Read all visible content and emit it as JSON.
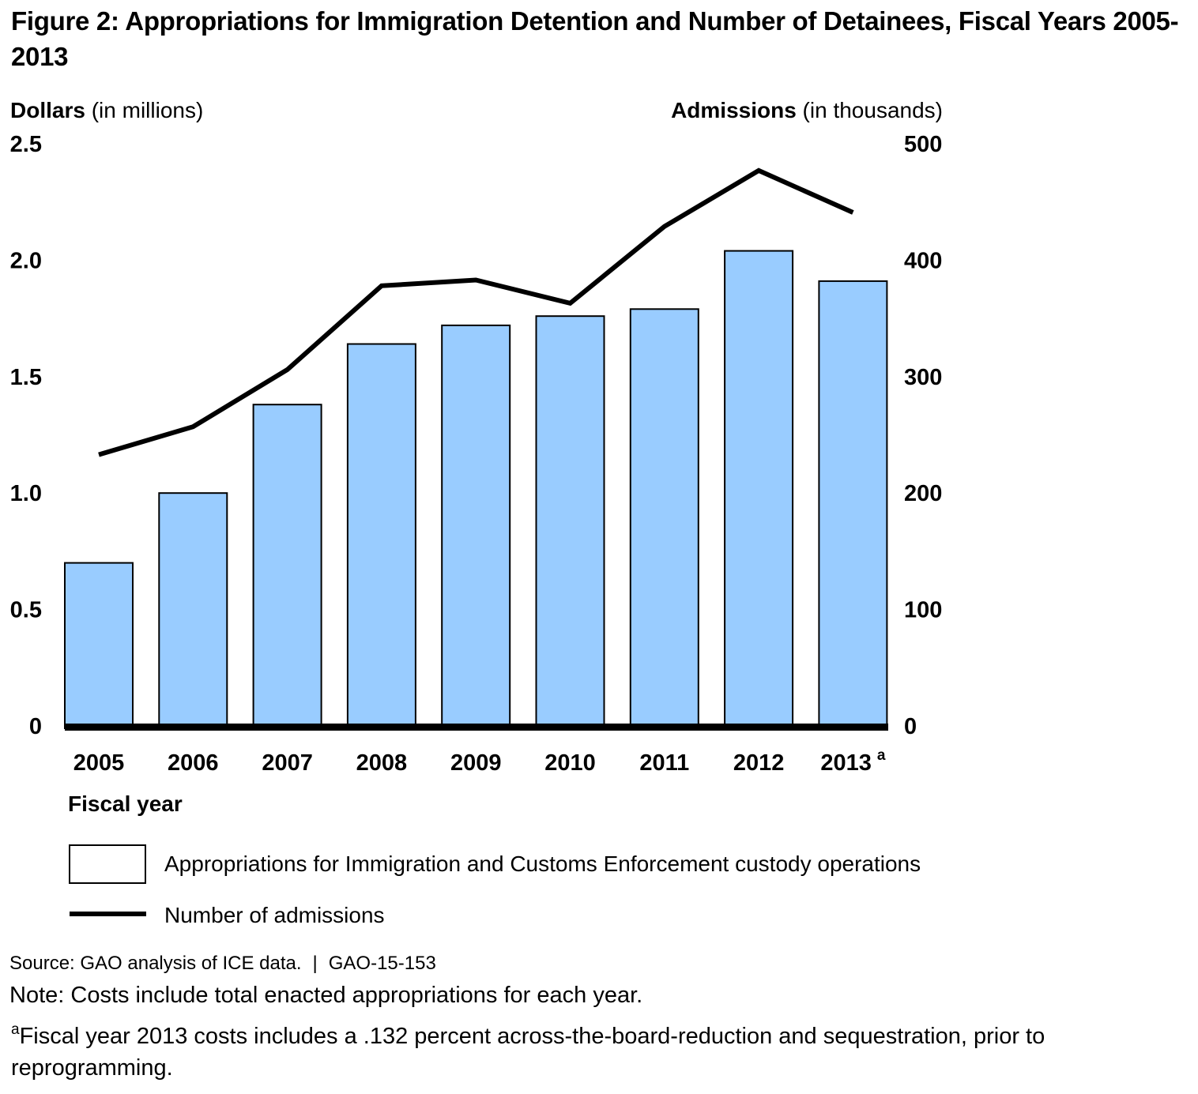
{
  "title": "Figure 2: Appropriations for Immigration Detention and Number of Detainees, Fiscal Years 2005-2013",
  "axes": {
    "left": {
      "label": "Dollars",
      "unit": " (in millions)",
      "ticks": [
        "2.5",
        "2.0",
        "1.5",
        "1.0",
        "0.5",
        "0"
      ]
    },
    "right": {
      "label": "Admissions",
      "unit": " (in thousands)",
      "ticks": [
        "500",
        "400",
        "300",
        "200",
        "100",
        "0"
      ]
    },
    "x": {
      "label": "Fiscal year",
      "last_superscript": "a"
    }
  },
  "chart_data": {
    "type": "combo-bar-line",
    "title": "Appropriations for Immigration Detention and Number of Detainees, Fiscal Years 2005-2013",
    "categories": [
      "2005",
      "2006",
      "2007",
      "2008",
      "2009",
      "2010",
      "2011",
      "2012",
      "2013"
    ],
    "series": [
      {
        "name": "Appropriations for Immigration and Customs Enforcement custody operations",
        "type": "bar",
        "axis": "left",
        "values": [
          0.7,
          1.0,
          1.38,
          1.64,
          1.72,
          1.76,
          1.79,
          2.04,
          1.91
        ],
        "color": "#99CCFF"
      },
      {
        "name": "Number of admissions",
        "type": "line",
        "axis": "right",
        "values": [
          233,
          257,
          306,
          378,
          383,
          363,
          429,
          477,
          441
        ],
        "color": "#000000"
      }
    ],
    "left_axis_range": [
      0,
      2.5
    ],
    "right_axis_range": [
      0,
      500
    ],
    "left_axis_label": "Dollars (in millions)",
    "right_axis_label": "Admissions (in thousands)",
    "x_axis_label": "Fiscal year",
    "grid": false,
    "legend_position": "bottom"
  },
  "legend": {
    "items": [
      {
        "label": "Appropriations for Immigration and Customs Enforcement custody operations",
        "swatch": "bar",
        "color": "#99CCFF"
      },
      {
        "label": "Number of admissions",
        "swatch": "line",
        "color": "#000000"
      }
    ]
  },
  "source": {
    "text": "Source: GAO analysis of ICE data.",
    "separator": "|",
    "report": "GAO-15-153"
  },
  "note": "Note: Costs include total enacted appropriations for each year.",
  "footnote": {
    "marker": "a",
    "text": "Fiscal year 2013 costs includes a .132 percent across-the-board-reduction and sequestration, prior to reprogramming."
  }
}
